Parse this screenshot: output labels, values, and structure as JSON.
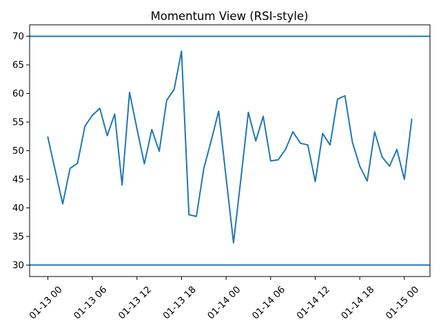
{
  "chart_data": {
    "type": "line",
    "title": "Momentum View (RSI-style)",
    "xlabel": "",
    "ylabel": "",
    "grid": false,
    "legend": null,
    "line_color": "#1f77b4",
    "overbought_level": 70,
    "oversold_level": 30,
    "x_unit": "hours since 01-13 00:00",
    "x_hours": [
      0,
      1,
      2,
      3,
      4,
      5,
      6,
      7,
      8,
      9,
      10,
      11,
      12,
      13,
      14,
      15,
      16,
      17,
      18,
      19,
      20,
      21,
      22,
      23,
      24,
      25,
      26,
      27,
      28,
      29,
      30,
      31,
      32,
      33,
      34,
      35,
      36,
      37,
      38,
      39,
      40,
      41,
      42,
      43,
      44,
      45,
      46,
      47,
      48,
      49
    ],
    "values": [
      52.4,
      46.5,
      40.7,
      46.9,
      47.8,
      54.3,
      56.2,
      57.4,
      52.6,
      56.4,
      44.0,
      60.2,
      53.8,
      47.7,
      53.7,
      49.9,
      58.8,
      60.7,
      67.4,
      38.8,
      38.5,
      46.9,
      51.8,
      56.9,
      45.3,
      33.9,
      45.2,
      56.7,
      51.7,
      56.0,
      48.2,
      48.4,
      50.2,
      53.3,
      51.3,
      51.0,
      44.6,
      53.0,
      51.0,
      59.0,
      59.6,
      51.5,
      47.3,
      44.7,
      53.3,
      48.9,
      47.3,
      50.2,
      45.0,
      55.5
    ],
    "y_ticks": [
      30,
      35,
      40,
      45,
      50,
      55,
      60,
      65,
      70
    ],
    "x_tick_hours": [
      0,
      6,
      12,
      18,
      24,
      30,
      36,
      42,
      48
    ],
    "x_tick_labels": [
      "01-13 00",
      "01-13 06",
      "01-13 12",
      "01-13 18",
      "01-14 00",
      "01-14 06",
      "01-14 12",
      "01-14 18",
      "01-15 00"
    ],
    "ylim": [
      28,
      72
    ],
    "xlim": [
      -2.45,
      51.45
    ]
  }
}
